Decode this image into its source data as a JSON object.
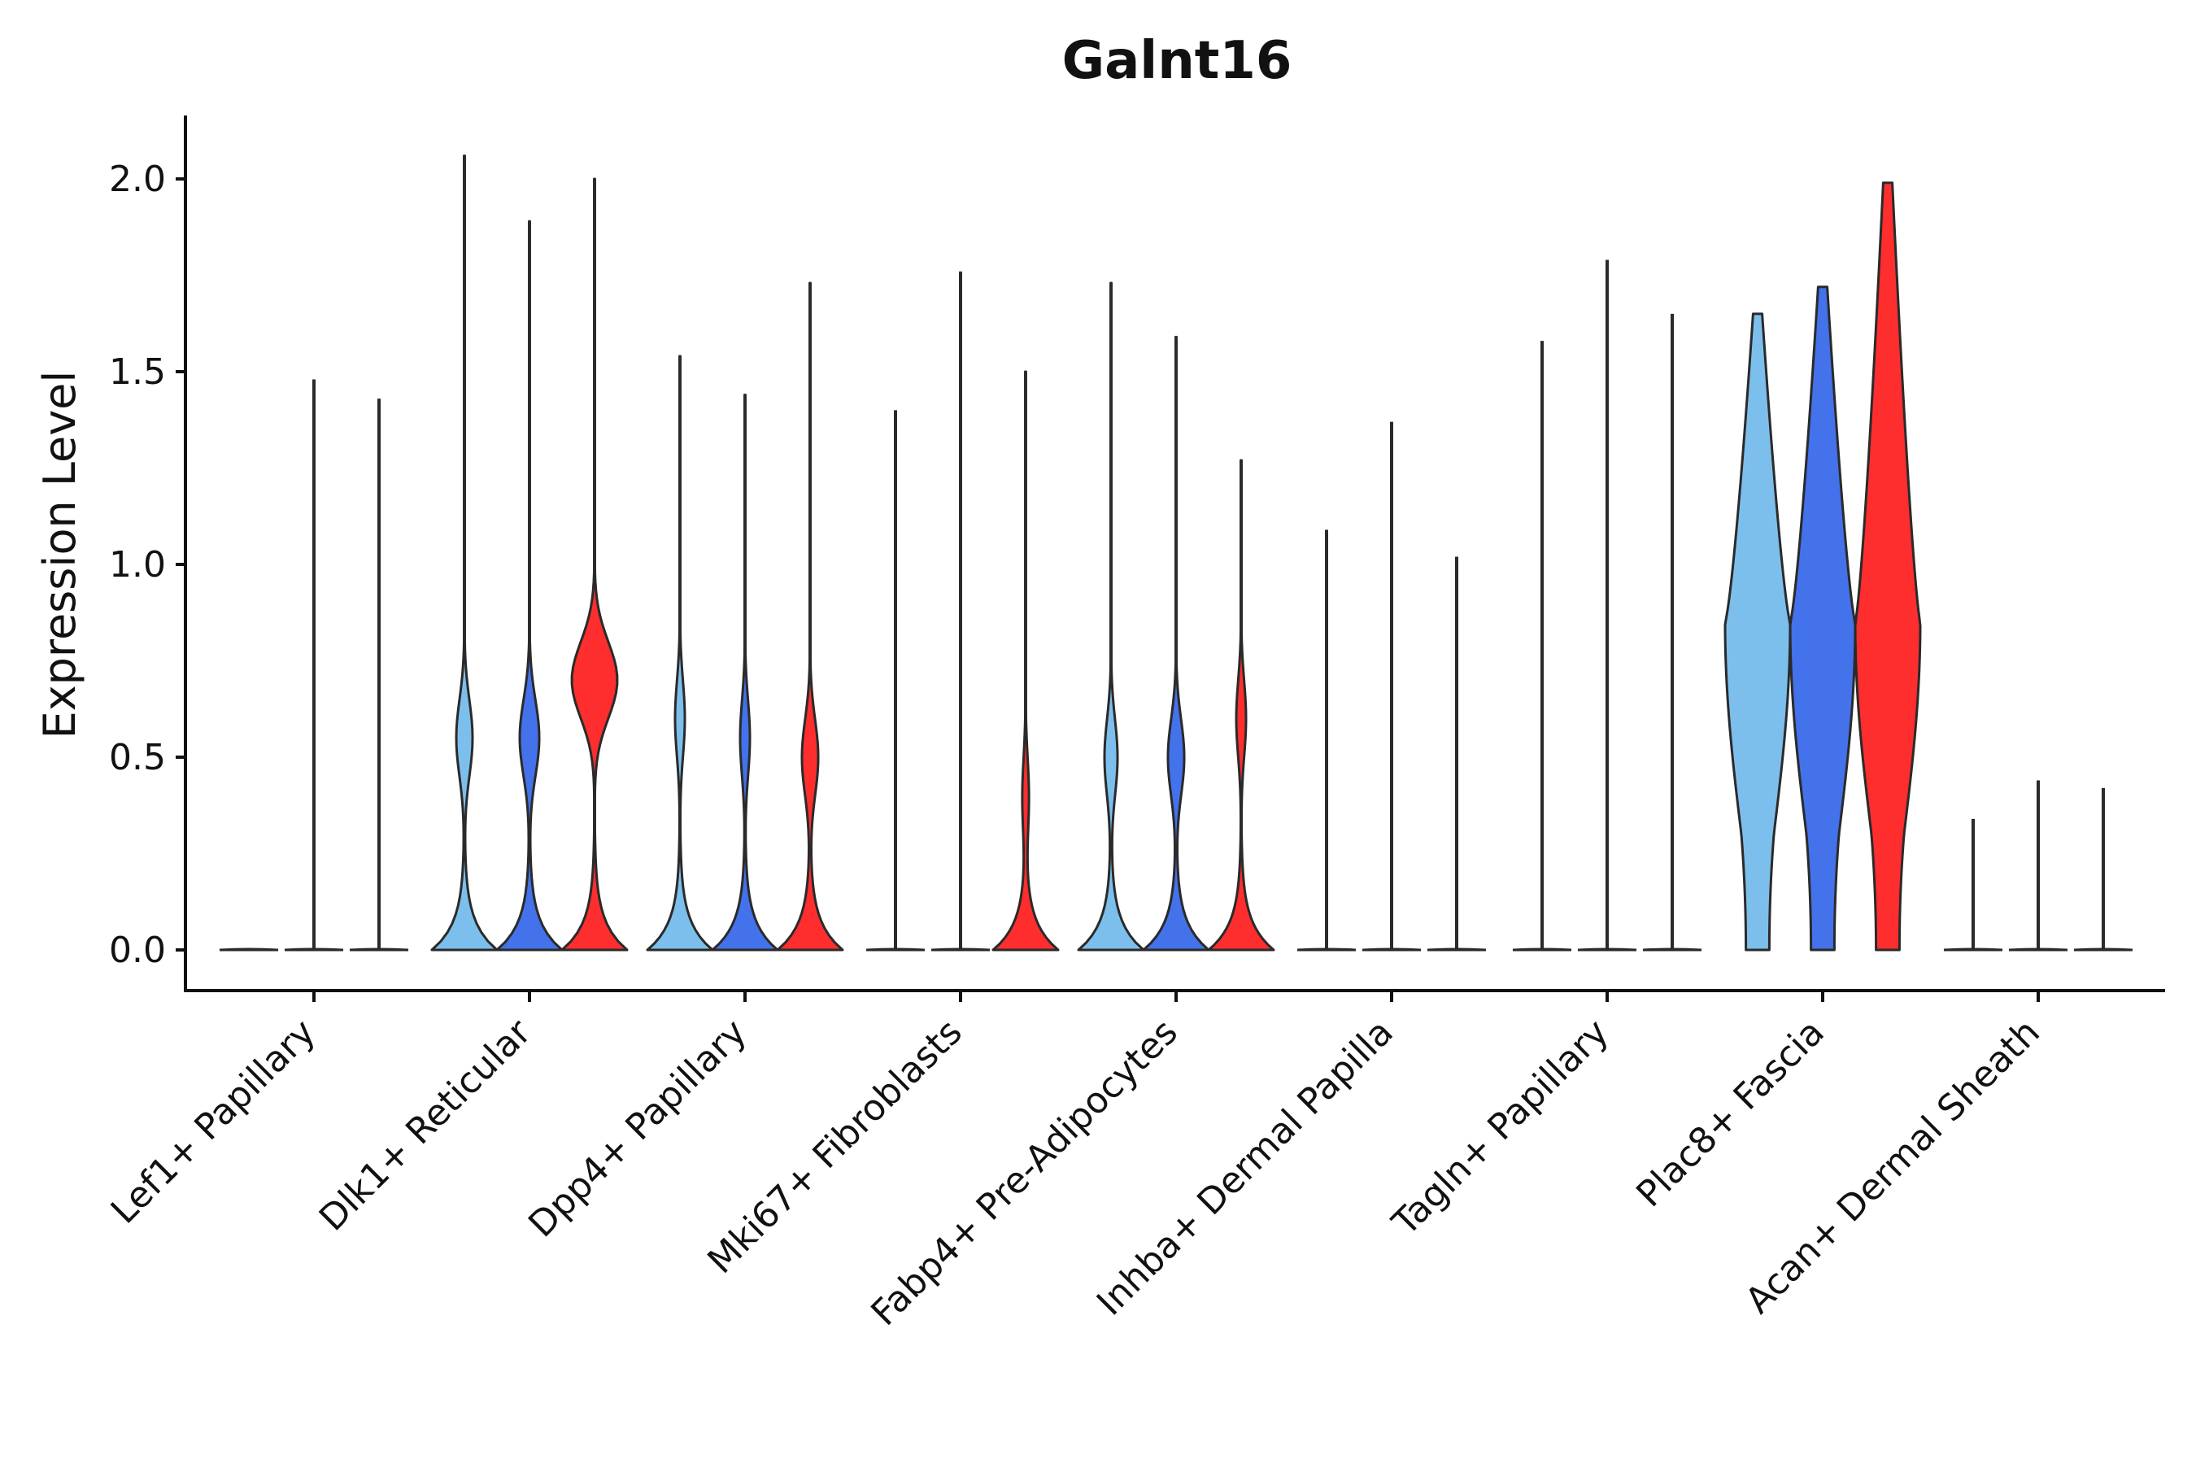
{
  "chart_data": {
    "type": "violin",
    "title": "Galnt16",
    "xlabel": "",
    "ylabel": "Expression Level",
    "ylim": [
      -0.1,
      2.16
    ],
    "yticks": [
      0.0,
      0.5,
      1.0,
      1.5,
      2.0
    ],
    "ytick_labels": [
      "0.0",
      "0.5",
      "1.0",
      "1.5",
      "2.0"
    ],
    "categories": [
      "Lef1+ Papillary",
      "Dlk1+ Reticular",
      "Dpp4+ Papillary",
      "Mki67+ Fibroblasts",
      "Fabp4+ Pre-Adipocytes",
      "Inhba+ Dermal Papilla",
      "Tagln+ Papillary",
      "Plac8+ Fascia",
      "Acan+ Dermal Sheath"
    ],
    "series_colors": [
      "#7dbfec",
      "#4372ea",
      "#ff2e2e"
    ],
    "groups": [
      {
        "category": "Lef1+ Papillary",
        "violins": [
          {
            "max": 0.0,
            "w0": 0.4
          },
          {
            "max": 1.48,
            "w0": 0.4
          },
          {
            "max": 1.43,
            "w0": 0.4
          }
        ]
      },
      {
        "category": "Dlk1+ Reticular",
        "violins": [
          {
            "max": 2.06,
            "w0": 1.0,
            "mid": 0.55,
            "mw": 0.25
          },
          {
            "max": 1.89,
            "w0": 1.0,
            "mid": 0.55,
            "mw": 0.3
          },
          {
            "max": 2.0,
            "w0": 1.0,
            "mid": 0.7,
            "mw": 0.7
          }
        ]
      },
      {
        "category": "Dpp4+ Papillary",
        "violins": [
          {
            "max": 1.54,
            "w0": 1.0,
            "mid": 0.6,
            "mw": 0.15
          },
          {
            "max": 1.44,
            "w0": 1.0,
            "mid": 0.55,
            "mw": 0.15
          },
          {
            "max": 1.73,
            "w0": 1.0,
            "mid": 0.5,
            "mw": 0.25
          }
        ]
      },
      {
        "category": "Mki67+ Fibroblasts",
        "violins": [
          {
            "max": 1.4,
            "w0": 0.4
          },
          {
            "max": 1.76,
            "w0": 0.4
          },
          {
            "max": 1.5,
            "w0": 1.0,
            "mid": 0.4,
            "mw": 0.1
          }
        ]
      },
      {
        "category": "Fabp4+ Pre-Adipocytes",
        "violins": [
          {
            "max": 1.73,
            "w0": 1.0,
            "mid": 0.5,
            "mw": 0.2
          },
          {
            "max": 1.59,
            "w0": 1.0,
            "mid": 0.5,
            "mw": 0.25
          },
          {
            "max": 1.27,
            "w0": 1.0,
            "mid": 0.6,
            "mw": 0.15
          }
        ]
      },
      {
        "category": "Inhba+ Dermal Papilla",
        "violins": [
          {
            "max": 1.09,
            "w0": 0.4
          },
          {
            "max": 1.37,
            "w0": 0.4
          },
          {
            "max": 1.02,
            "w0": 0.4
          }
        ]
      },
      {
        "category": "Tagln+ Papillary",
        "violins": [
          {
            "max": 1.58,
            "w0": 0.4
          },
          {
            "max": 1.79,
            "w0": 0.4
          },
          {
            "max": 1.65,
            "w0": 0.4
          }
        ]
      },
      {
        "category": "Plac8+ Fascia",
        "violins": [
          {
            "max": 1.65,
            "shape": "broad"
          },
          {
            "max": 1.72,
            "shape": "broad"
          },
          {
            "max": 1.99,
            "shape": "broad"
          }
        ]
      },
      {
        "category": "Acan+ Dermal Sheath",
        "violins": [
          {
            "max": 0.34,
            "w0": 0.4
          },
          {
            "max": 0.44,
            "w0": 0.4
          },
          {
            "max": 0.42,
            "w0": 0.4
          }
        ]
      }
    ]
  }
}
